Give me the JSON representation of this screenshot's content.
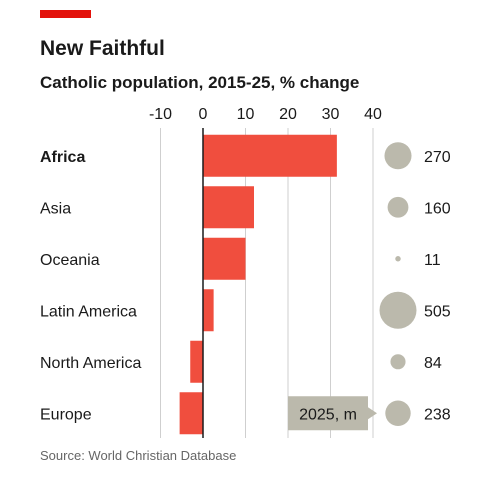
{
  "chart_data": {
    "type": "bar",
    "title": "New Faithful",
    "subtitle": "Catholic population, 2015-25, % change",
    "x_ticks": [
      -10,
      0,
      10,
      20,
      30,
      40
    ],
    "xlim": [
      -12,
      42
    ],
    "grid": true,
    "categories": [
      "Africa",
      "Asia",
      "Oceania",
      "Latin America",
      "North America",
      "Europe"
    ],
    "bold_category": "Africa",
    "series": [
      {
        "values": [
          31.5,
          12,
          10,
          2.5,
          -3,
          -5.5
        ]
      }
    ],
    "bubbles": {
      "label": "2025, m",
      "values": [
        270,
        160,
        11,
        505,
        84,
        238
      ]
    },
    "source": "Source: World Christian Database",
    "colors": {
      "accent_bar": "#E3120B",
      "bar": "#F04E3E",
      "bubble": "#BBB9AC",
      "callout": "#BBB9AC",
      "grid": "#CFCFCF",
      "zero_line": "#1a1a1a",
      "text": "#1a1a1a",
      "source_text": "#666666"
    }
  }
}
